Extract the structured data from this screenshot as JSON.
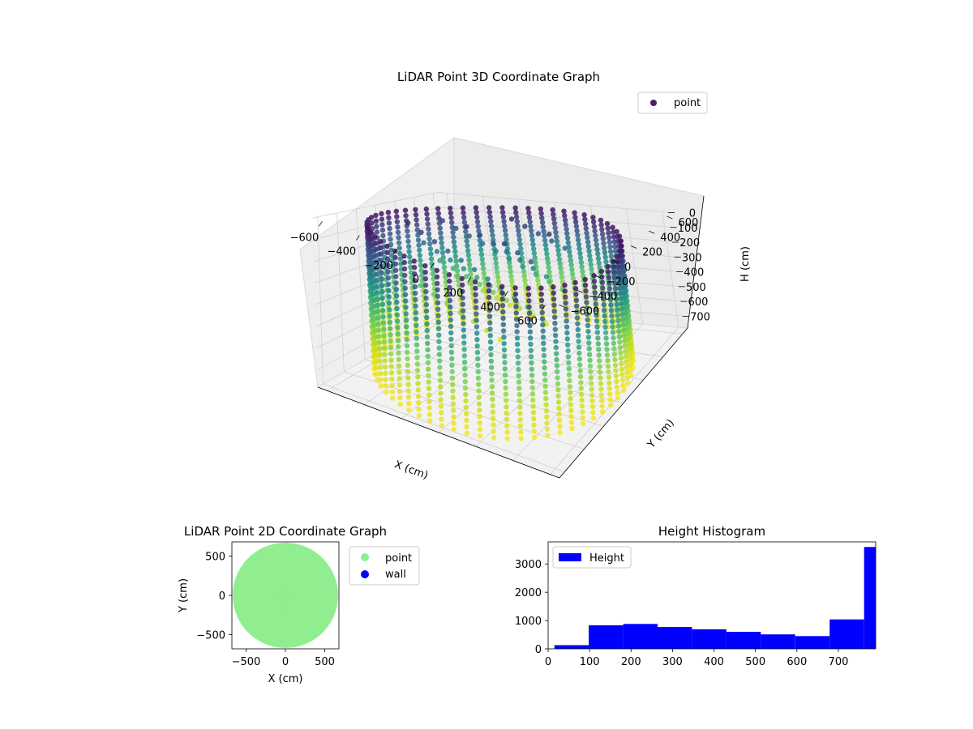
{
  "colors": {
    "point_legend": "#471f6c",
    "point_2d": "#90ee90",
    "wall_2d": "#0000ff",
    "histogram": "#0000ff",
    "colormap": [
      "#440154",
      "#3b528b",
      "#21918c",
      "#5ec962",
      "#c8e020",
      "#fde725"
    ]
  },
  "chart_data": [
    {
      "type": "scatter3d",
      "title": "LiDAR Point 3D Coordinate Graph",
      "xlabel": "X (cm)",
      "ylabel": "Y (cm)",
      "zlabel": "H (cm)",
      "x_ticks": [
        "−600",
        "−400",
        "−200",
        "0",
        "200",
        "400",
        "600"
      ],
      "y_ticks": [
        "−600",
        "−400",
        "−200",
        "0",
        "200",
        "400",
        "600"
      ],
      "z_ticks": [
        "0",
        "100",
        "200",
        "300",
        "400",
        "500",
        "600",
        "700"
      ],
      "xlim": [
        -650,
        650
      ],
      "ylim": [
        -650,
        650
      ],
      "zlim": [
        0,
        780
      ],
      "z_inverted": true,
      "colormap": "viridis",
      "legend": [
        "point"
      ],
      "legend_position": "upper-right",
      "grid": true,
      "shape": "cylindrical wall of vertical scan columns, radius ~620 cm, height 0-780 cm"
    },
    {
      "type": "scatter",
      "title": "LiDAR Point 2D Coordinate Graph",
      "xlabel": "X (cm)",
      "ylabel": "Y (cm)",
      "x_ticks": [
        "−500",
        "0",
        "500"
      ],
      "y_ticks": [
        "500",
        "0",
        "−500"
      ],
      "xlim": [
        -680,
        680
      ],
      "ylim": [
        -680,
        680
      ],
      "series": [
        {
          "name": "point",
          "color": "#90ee90",
          "shape": "filled disc, radius ~640 cm"
        },
        {
          "name": "wall",
          "color": "#0000ff"
        }
      ],
      "legend_position": "outside-right",
      "grid": false
    },
    {
      "type": "histogram",
      "title": "Height Histogram",
      "x_ticks": [
        "0",
        "100",
        "200",
        "300",
        "400",
        "500",
        "600",
        "700"
      ],
      "y_ticks": [
        "0",
        "1000",
        "2000",
        "3000"
      ],
      "xlim": [
        0,
        790
      ],
      "ylim": [
        0,
        3780
      ],
      "bin_edges": [
        15,
        98,
        181,
        264,
        347,
        430,
        513,
        596,
        679,
        762,
        790
      ],
      "counts": [
        130,
        830,
        880,
        770,
        690,
        600,
        510,
        450,
        1040,
        3600
      ],
      "series": [
        {
          "name": "Height"
        }
      ],
      "legend_position": "upper-left",
      "grid": false
    }
  ]
}
